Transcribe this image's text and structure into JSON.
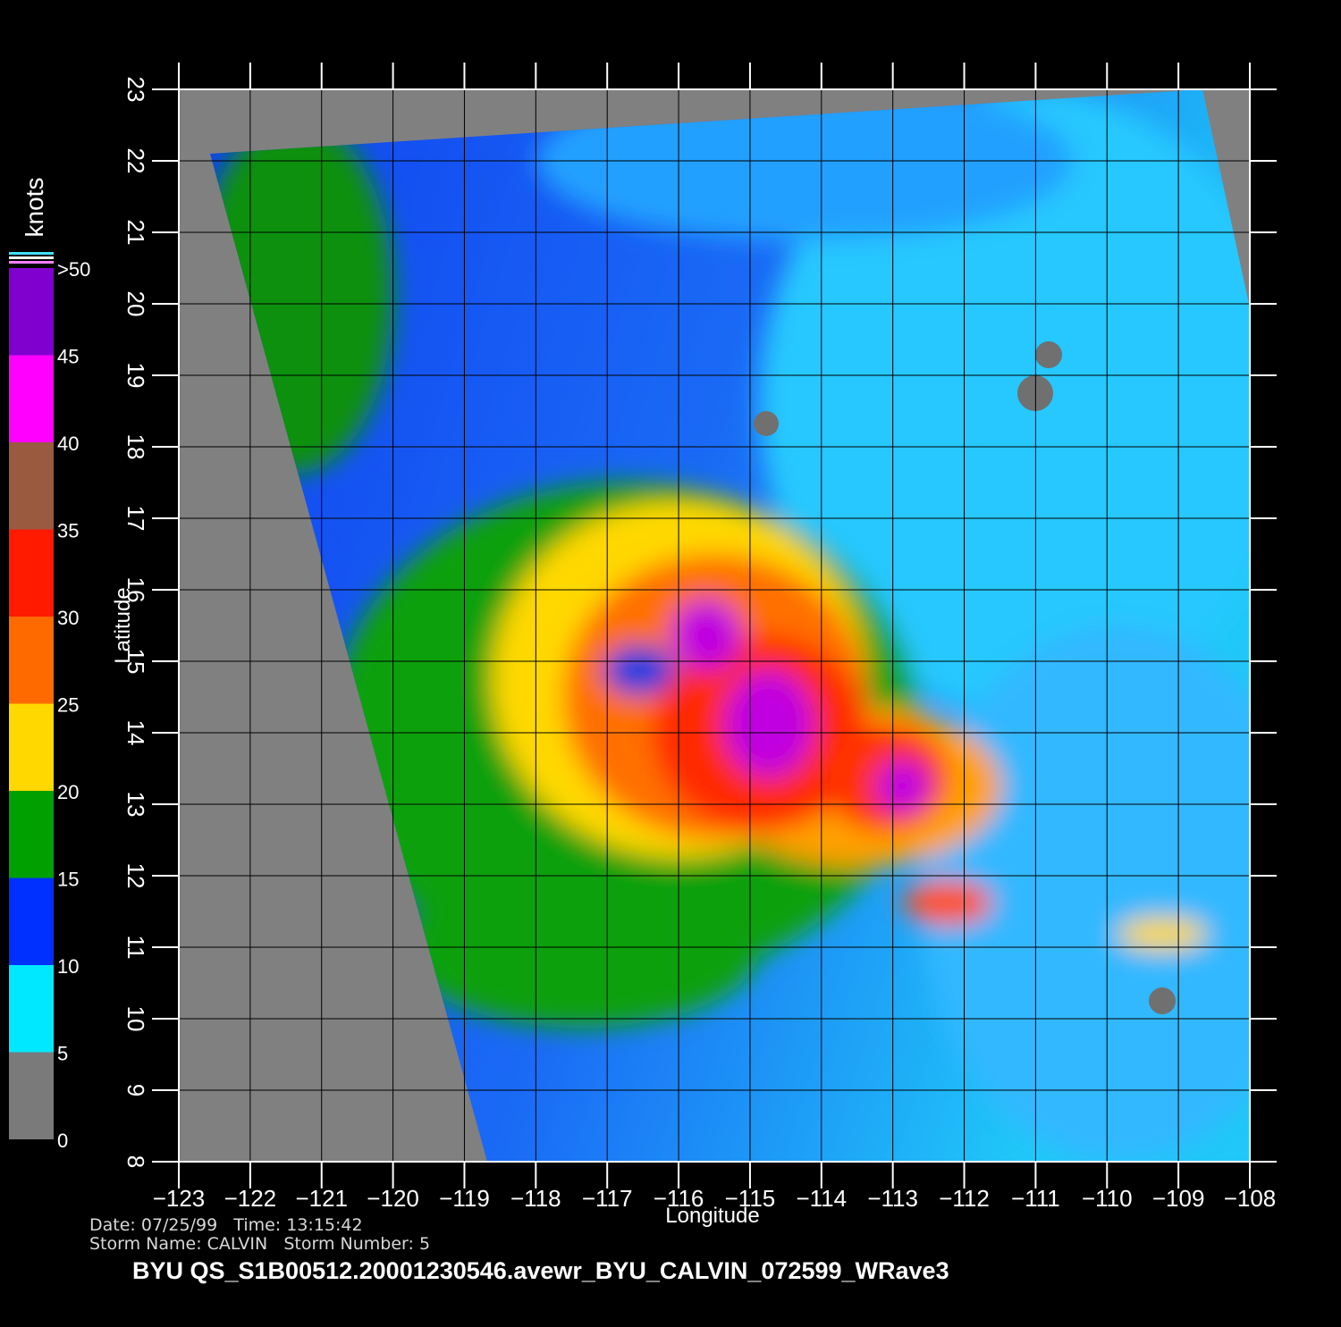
{
  "chart_data": {
    "type": "map",
    "xlabel": "Longitude",
    "ylabel": "Latitude",
    "xlim": [
      -123,
      -108
    ],
    "ylim": [
      8,
      23
    ],
    "xticks": [
      {
        "value": -123,
        "label": "−123"
      },
      {
        "value": -122,
        "label": "−122"
      },
      {
        "value": -121,
        "label": "−121"
      },
      {
        "value": -120,
        "label": "−120"
      },
      {
        "value": -119,
        "label": "−119"
      },
      {
        "value": -118,
        "label": "−118"
      },
      {
        "value": -117,
        "label": "−117"
      },
      {
        "value": -116,
        "label": "−116"
      },
      {
        "value": -115,
        "label": "−115"
      },
      {
        "value": -114,
        "label": "−114"
      },
      {
        "value": -113,
        "label": "−113"
      },
      {
        "value": -112,
        "label": "−112"
      },
      {
        "value": -111,
        "label": "−111"
      },
      {
        "value": -110,
        "label": "−110"
      },
      {
        "value": -109,
        "label": "−109"
      },
      {
        "value": -108,
        "label": "−108"
      }
    ],
    "yticks": [
      8,
      9,
      10,
      11,
      12,
      13,
      14,
      15,
      16,
      17,
      18,
      19,
      20,
      21,
      22,
      23
    ],
    "grid": true,
    "colorbar": {
      "label": "knots",
      "lim": [
        0,
        50
      ],
      "ticks": [
        0,
        5,
        10,
        15,
        20,
        25,
        30,
        35,
        40,
        45,
        {
          "value": 50,
          "label": ">50"
        }
      ],
      "colors": [
        "#7a7a7a",
        "#00e8ff",
        "#0030ff",
        "#00a000",
        "#ffd800",
        "#ff6a00",
        "#ff1a00",
        "#9a5a40",
        "#ff00ff",
        "#8000d0"
      ]
    },
    "annotations": [
      "Date: 07/25/99   Time: 13:15:42",
      "Storm Name: CALVIN   Storm Number: 5"
    ],
    "footer": "BYU  QS_S1B00512.20001230546.avewr_BYU_CALVIN_072599_WRave3"
  }
}
